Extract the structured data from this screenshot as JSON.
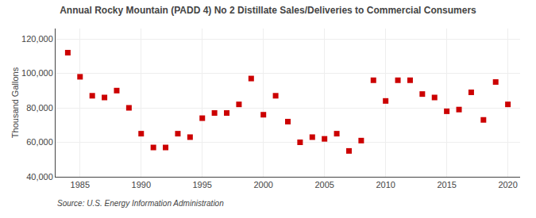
{
  "chart_data": {
    "type": "scatter",
    "title": "Annual Rocky Mountain (PADD 4) No 2 Distillate Sales/Deliveries to Commercial Consumers",
    "ylabel": "Thousand Gallons",
    "annotations": [
      {
        "text": "Source: U.S. Energy Information Administration"
      }
    ],
    "x": [
      1984,
      1985,
      1986,
      1987,
      1988,
      1989,
      1990,
      1991,
      1992,
      1993,
      1994,
      1995,
      1996,
      1997,
      1998,
      1999,
      2000,
      2001,
      2002,
      2003,
      2004,
      2005,
      2006,
      2007,
      2008,
      2009,
      2010,
      2011,
      2012,
      2013,
      2014,
      2015,
      2016,
      2017,
      2018,
      2019,
      2020
    ],
    "values": [
      112000,
      98000,
      87000,
      86000,
      90000,
      80000,
      65000,
      57000,
      57000,
      65000,
      63000,
      74000,
      77000,
      77000,
      82000,
      97000,
      76000,
      87000,
      72000,
      60000,
      63000,
      62000,
      65000,
      55000,
      61000,
      96000,
      84000,
      96000,
      96000,
      88000,
      86000,
      78000,
      79000,
      89000,
      73000,
      95000,
      82000
    ],
    "color": "#cc0000",
    "marker": "square",
    "xlim": [
      1983,
      2021
    ],
    "xticks": [
      1985,
      1990,
      1995,
      2000,
      2005,
      2010,
      2015,
      2020
    ],
    "ylim": [
      40000,
      126000
    ],
    "yticks": [
      {
        "value": 40000,
        "label": "40,000"
      },
      {
        "value": 60000,
        "label": "60,000"
      },
      {
        "value": 80000,
        "label": "80,000"
      },
      {
        "value": 100000,
        "label": "100,000"
      },
      {
        "value": 120000,
        "label": "120,000"
      }
    ],
    "grid": true
  }
}
